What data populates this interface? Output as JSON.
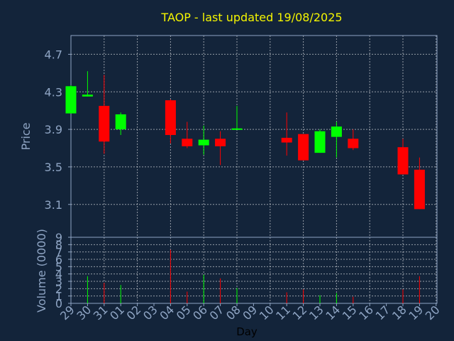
{
  "chart_data": [
    {
      "type": "candlestick",
      "title": "TAOP - last updated 19/08/2025",
      "ylabel": "Price",
      "xlabel": "Day",
      "ylim": [
        2.75,
        4.9
      ],
      "yticks": [
        "4.7",
        "4.3",
        "3.9",
        "3.5",
        "3.1"
      ],
      "ytick_values": [
        4.7,
        4.3,
        3.9,
        3.5,
        3.1
      ],
      "categories": [
        "29",
        "30",
        "31",
        "01",
        "02",
        "03",
        "04",
        "05",
        "06",
        "07",
        "08",
        "09",
        "10",
        "11",
        "12",
        "13",
        "14",
        "15",
        "16",
        "17",
        "18",
        "19",
        "20"
      ],
      "candles": [
        {
          "day": "29",
          "open": 4.07,
          "high": 4.37,
          "low": 4.07,
          "close": 4.36
        },
        {
          "day": "30",
          "open": 4.25,
          "high": 4.52,
          "low": 4.25,
          "close": 4.27
        },
        {
          "day": "31",
          "open": 4.15,
          "high": 4.48,
          "low": 3.64,
          "close": 3.77
        },
        {
          "day": "01",
          "open": 3.9,
          "high": 4.08,
          "low": 3.84,
          "close": 4.06
        },
        {
          "day": "04",
          "open": 4.21,
          "high": 4.22,
          "low": 3.75,
          "close": 3.84
        },
        {
          "day": "05",
          "open": 3.8,
          "high": 3.98,
          "low": 3.7,
          "close": 3.72
        },
        {
          "day": "06",
          "open": 3.73,
          "high": 3.94,
          "low": 3.63,
          "close": 3.79
        },
        {
          "day": "07",
          "open": 3.8,
          "high": 3.88,
          "low": 3.52,
          "close": 3.72
        },
        {
          "day": "08",
          "open": 3.9,
          "high": 4.15,
          "low": 3.9,
          "close": 3.91
        },
        {
          "day": "11",
          "open": 3.81,
          "high": 4.08,
          "low": 3.62,
          "close": 3.76
        },
        {
          "day": "12",
          "open": 3.85,
          "high": 3.85,
          "low": 3.57,
          "close": 3.57
        },
        {
          "day": "13",
          "open": 3.65,
          "high": 3.9,
          "low": 3.65,
          "close": 3.88
        },
        {
          "day": "14",
          "open": 3.82,
          "high": 3.98,
          "low": 3.6,
          "close": 3.93
        },
        {
          "day": "15",
          "open": 3.8,
          "high": 3.9,
          "low": 3.68,
          "close": 3.7
        },
        {
          "day": "18",
          "open": 3.71,
          "high": 3.8,
          "low": 3.42,
          "close": 3.42
        },
        {
          "day": "19",
          "open": 3.47,
          "high": 3.6,
          "low": 3.05,
          "close": 3.05
        }
      ]
    },
    {
      "type": "bar",
      "ylabel": "Volume (0000)",
      "ylim": [
        0,
        9
      ],
      "yticks": [
        "0",
        "1",
        "2",
        "3",
        "4",
        "5",
        "6",
        "7",
        "8",
        "9"
      ],
      "ytick_values": [
        0,
        1,
        2,
        3,
        4,
        5,
        6,
        7,
        8,
        9
      ],
      "bars": [
        {
          "day": "30",
          "value": 3.7,
          "direction": "up"
        },
        {
          "day": "31",
          "value": 2.8,
          "direction": "down"
        },
        {
          "day": "01",
          "value": 2.5,
          "direction": "up"
        },
        {
          "day": "04",
          "value": 7.3,
          "direction": "down"
        },
        {
          "day": "05",
          "value": 1.6,
          "direction": "down"
        },
        {
          "day": "06",
          "value": 3.9,
          "direction": "up"
        },
        {
          "day": "07",
          "value": 3.4,
          "direction": "down"
        },
        {
          "day": "08",
          "value": 2.1,
          "direction": "up"
        },
        {
          "day": "11",
          "value": 1.5,
          "direction": "down"
        },
        {
          "day": "12",
          "value": 1.9,
          "direction": "down"
        },
        {
          "day": "13",
          "value": 1.1,
          "direction": "up"
        },
        {
          "day": "14",
          "value": 1.4,
          "direction": "up"
        },
        {
          "day": "15",
          "value": 0.9,
          "direction": "down"
        },
        {
          "day": "18",
          "value": 1.9,
          "direction": "down"
        },
        {
          "day": "19",
          "value": 3.7,
          "direction": "down"
        }
      ]
    }
  ],
  "colors": {
    "background": "#13243a",
    "up": "#00ff00",
    "down": "#ff0000",
    "axis": "#8fa5c4",
    "title": "#f5f500"
  }
}
